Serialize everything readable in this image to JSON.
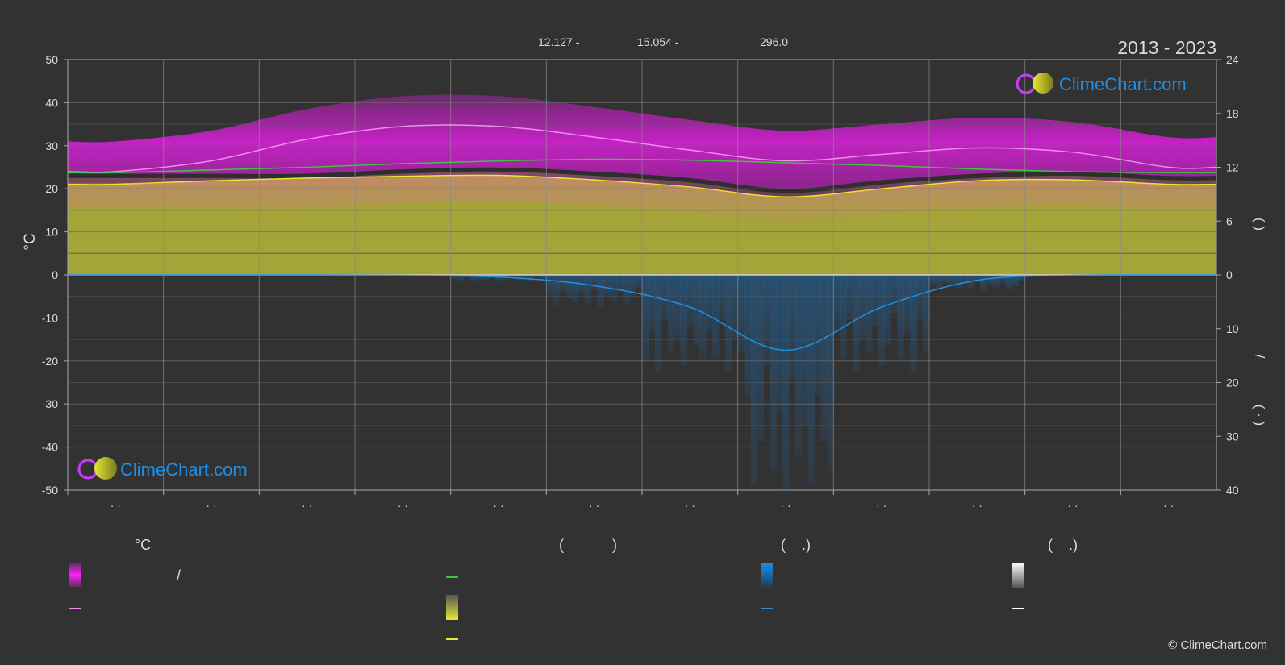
{
  "header": {
    "year_range": "2013 - 2023",
    "coord_lat": "12.127 -",
    "coord_lon": "15.054 -",
    "elevation": "296.0"
  },
  "axes": {
    "left_unit": "°C",
    "right_top_paren": "(   )",
    "right_bottom_slash": "/",
    "right_bottom_paren": "( ·  )"
  },
  "brand": {
    "name": "ClimeChart.com",
    "copyright": "© ClimeChart.com"
  },
  "legend": {
    "col1_head": "°C",
    "col1_slash": "/",
    "col2_head": "(            )",
    "col3_head": "(    .)",
    "col4_head": "(    .)"
  },
  "colors": {
    "background": "#323232",
    "temp_band": "#d61fd6",
    "temp_low_band": "#e87ab0",
    "sunshine_band": "#b8b83a",
    "daylight_line": "#3ec53e",
    "sunshine_line": "#e8e832",
    "max_temp_line": "#f08cf0",
    "min_temp_line": "#f07878",
    "precip_line": "#1e90e6",
    "precip_band": "#1e6fb4"
  },
  "chart_data": {
    "type": "line",
    "title": "2013 - 2023",
    "x_tick_labels": [
      "· ·",
      "· ·",
      "· ·",
      "· ·",
      "· ·",
      "· ·",
      "· ·",
      "· ·",
      "· ·",
      "· ·",
      "· ·",
      "· ·"
    ],
    "ylim_left": [
      -50,
      50
    ],
    "yticks_left": [
      50,
      40,
      30,
      20,
      10,
      0,
      -10,
      -20,
      -30,
      -40,
      -50
    ],
    "ylabel_left": "°C",
    "ylim_right_top": [
      0,
      24
    ],
    "yticks_right_top": [
      24,
      18,
      12,
      6,
      0
    ],
    "ylim_right_bottom": [
      0,
      40
    ],
    "yticks_right_bottom": [
      0,
      10,
      20,
      30,
      40
    ],
    "grid": true,
    "series": [
      {
        "key": "max_temp",
        "values": [
          24.0,
          26.5,
          31.5,
          34.5,
          34.5,
          32.0,
          29.0,
          26.5,
          28.0,
          29.5,
          28.5,
          25.0
        ],
        "unit": "°C"
      },
      {
        "key": "min_temp",
        "values": [
          21.5,
          21.5,
          21.5,
          22.5,
          23.0,
          22.0,
          20.5,
          18.0,
          20.0,
          21.5,
          22.0,
          21.0
        ],
        "unit": "°C"
      },
      {
        "key": "daylight",
        "values": [
          11.4,
          11.7,
          12.0,
          12.4,
          12.7,
          12.9,
          12.8,
          12.5,
          12.2,
          11.8,
          11.5,
          11.4
        ],
        "unit": "h"
      },
      {
        "key": "sunshine",
        "values": [
          10.1,
          10.5,
          10.8,
          11.0,
          11.1,
          10.6,
          9.8,
          8.7,
          9.6,
          10.5,
          10.6,
          10.1
        ],
        "unit": "h"
      },
      {
        "key": "precipitation",
        "values": [
          0.0,
          0.0,
          0.0,
          0.1,
          0.4,
          2.0,
          6.0,
          14.0,
          6.0,
          1.0,
          0.1,
          0.0
        ],
        "unit": "mm"
      }
    ]
  }
}
